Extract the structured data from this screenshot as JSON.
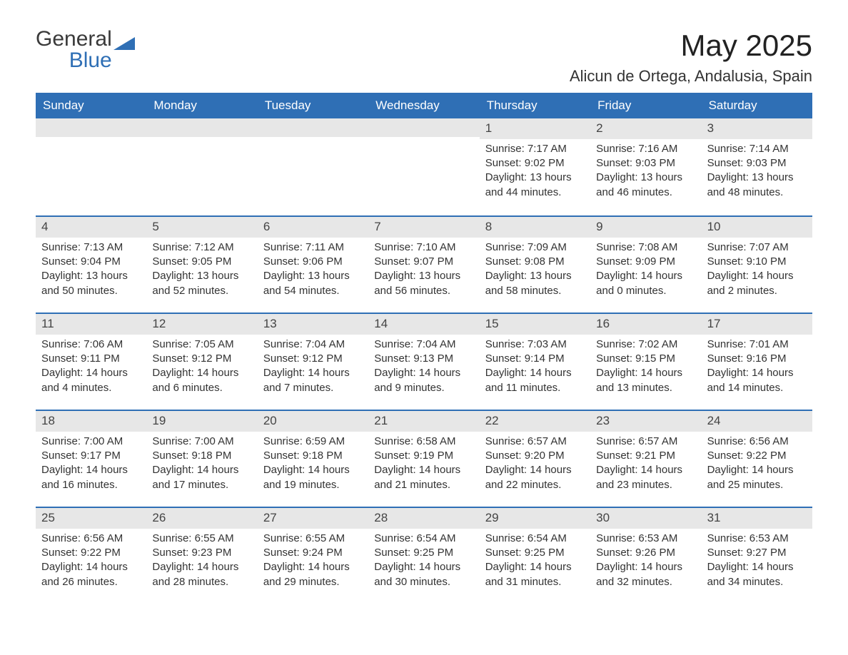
{
  "logo": {
    "word1": "General",
    "word2": "Blue"
  },
  "title": "May 2025",
  "location": "Alicun de Ortega, Andalusia, Spain",
  "colors": {
    "brand": "#2f6fb5",
    "daybar": "#e7e7e7",
    "bg": "#ffffff",
    "text": "#333333"
  },
  "day_names": [
    "Sunday",
    "Monday",
    "Tuesday",
    "Wednesday",
    "Thursday",
    "Friday",
    "Saturday"
  ],
  "weeks": [
    [
      null,
      null,
      null,
      null,
      {
        "n": "1",
        "sr": "Sunrise: 7:17 AM",
        "ss": "Sunset: 9:02 PM",
        "dl": "Daylight: 13 hours and 44 minutes."
      },
      {
        "n": "2",
        "sr": "Sunrise: 7:16 AM",
        "ss": "Sunset: 9:03 PM",
        "dl": "Daylight: 13 hours and 46 minutes."
      },
      {
        "n": "3",
        "sr": "Sunrise: 7:14 AM",
        "ss": "Sunset: 9:03 PM",
        "dl": "Daylight: 13 hours and 48 minutes."
      }
    ],
    [
      {
        "n": "4",
        "sr": "Sunrise: 7:13 AM",
        "ss": "Sunset: 9:04 PM",
        "dl": "Daylight: 13 hours and 50 minutes."
      },
      {
        "n": "5",
        "sr": "Sunrise: 7:12 AM",
        "ss": "Sunset: 9:05 PM",
        "dl": "Daylight: 13 hours and 52 minutes."
      },
      {
        "n": "6",
        "sr": "Sunrise: 7:11 AM",
        "ss": "Sunset: 9:06 PM",
        "dl": "Daylight: 13 hours and 54 minutes."
      },
      {
        "n": "7",
        "sr": "Sunrise: 7:10 AM",
        "ss": "Sunset: 9:07 PM",
        "dl": "Daylight: 13 hours and 56 minutes."
      },
      {
        "n": "8",
        "sr": "Sunrise: 7:09 AM",
        "ss": "Sunset: 9:08 PM",
        "dl": "Daylight: 13 hours and 58 minutes."
      },
      {
        "n": "9",
        "sr": "Sunrise: 7:08 AM",
        "ss": "Sunset: 9:09 PM",
        "dl": "Daylight: 14 hours and 0 minutes."
      },
      {
        "n": "10",
        "sr": "Sunrise: 7:07 AM",
        "ss": "Sunset: 9:10 PM",
        "dl": "Daylight: 14 hours and 2 minutes."
      }
    ],
    [
      {
        "n": "11",
        "sr": "Sunrise: 7:06 AM",
        "ss": "Sunset: 9:11 PM",
        "dl": "Daylight: 14 hours and 4 minutes."
      },
      {
        "n": "12",
        "sr": "Sunrise: 7:05 AM",
        "ss": "Sunset: 9:12 PM",
        "dl": "Daylight: 14 hours and 6 minutes."
      },
      {
        "n": "13",
        "sr": "Sunrise: 7:04 AM",
        "ss": "Sunset: 9:12 PM",
        "dl": "Daylight: 14 hours and 7 minutes."
      },
      {
        "n": "14",
        "sr": "Sunrise: 7:04 AM",
        "ss": "Sunset: 9:13 PM",
        "dl": "Daylight: 14 hours and 9 minutes."
      },
      {
        "n": "15",
        "sr": "Sunrise: 7:03 AM",
        "ss": "Sunset: 9:14 PM",
        "dl": "Daylight: 14 hours and 11 minutes."
      },
      {
        "n": "16",
        "sr": "Sunrise: 7:02 AM",
        "ss": "Sunset: 9:15 PM",
        "dl": "Daylight: 14 hours and 13 minutes."
      },
      {
        "n": "17",
        "sr": "Sunrise: 7:01 AM",
        "ss": "Sunset: 9:16 PM",
        "dl": "Daylight: 14 hours and 14 minutes."
      }
    ],
    [
      {
        "n": "18",
        "sr": "Sunrise: 7:00 AM",
        "ss": "Sunset: 9:17 PM",
        "dl": "Daylight: 14 hours and 16 minutes."
      },
      {
        "n": "19",
        "sr": "Sunrise: 7:00 AM",
        "ss": "Sunset: 9:18 PM",
        "dl": "Daylight: 14 hours and 17 minutes."
      },
      {
        "n": "20",
        "sr": "Sunrise: 6:59 AM",
        "ss": "Sunset: 9:18 PM",
        "dl": "Daylight: 14 hours and 19 minutes."
      },
      {
        "n": "21",
        "sr": "Sunrise: 6:58 AM",
        "ss": "Sunset: 9:19 PM",
        "dl": "Daylight: 14 hours and 21 minutes."
      },
      {
        "n": "22",
        "sr": "Sunrise: 6:57 AM",
        "ss": "Sunset: 9:20 PM",
        "dl": "Daylight: 14 hours and 22 minutes."
      },
      {
        "n": "23",
        "sr": "Sunrise: 6:57 AM",
        "ss": "Sunset: 9:21 PM",
        "dl": "Daylight: 14 hours and 23 minutes."
      },
      {
        "n": "24",
        "sr": "Sunrise: 6:56 AM",
        "ss": "Sunset: 9:22 PM",
        "dl": "Daylight: 14 hours and 25 minutes."
      }
    ],
    [
      {
        "n": "25",
        "sr": "Sunrise: 6:56 AM",
        "ss": "Sunset: 9:22 PM",
        "dl": "Daylight: 14 hours and 26 minutes."
      },
      {
        "n": "26",
        "sr": "Sunrise: 6:55 AM",
        "ss": "Sunset: 9:23 PM",
        "dl": "Daylight: 14 hours and 28 minutes."
      },
      {
        "n": "27",
        "sr": "Sunrise: 6:55 AM",
        "ss": "Sunset: 9:24 PM",
        "dl": "Daylight: 14 hours and 29 minutes."
      },
      {
        "n": "28",
        "sr": "Sunrise: 6:54 AM",
        "ss": "Sunset: 9:25 PM",
        "dl": "Daylight: 14 hours and 30 minutes."
      },
      {
        "n": "29",
        "sr": "Sunrise: 6:54 AM",
        "ss": "Sunset: 9:25 PM",
        "dl": "Daylight: 14 hours and 31 minutes."
      },
      {
        "n": "30",
        "sr": "Sunrise: 6:53 AM",
        "ss": "Sunset: 9:26 PM",
        "dl": "Daylight: 14 hours and 32 minutes."
      },
      {
        "n": "31",
        "sr": "Sunrise: 6:53 AM",
        "ss": "Sunset: 9:27 PM",
        "dl": "Daylight: 14 hours and 34 minutes."
      }
    ]
  ]
}
